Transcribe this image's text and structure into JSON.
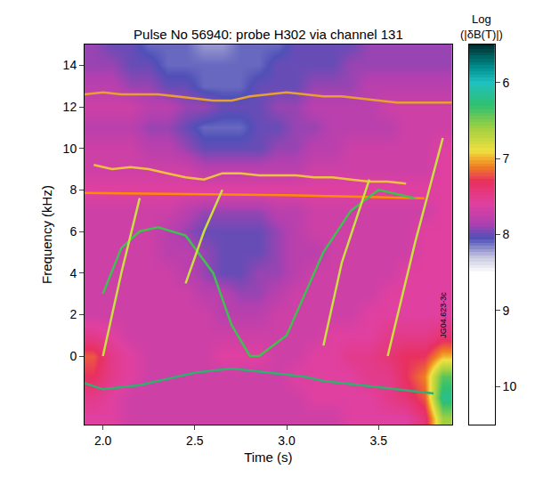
{
  "chart_data": {
    "type": "heatmap",
    "title": "Pulse No 56940: probe H302 via channel 131",
    "x_label": "Time (s)",
    "y_label": "Frequency (kHz)",
    "xlim": [
      1.9,
      3.9
    ],
    "ylim": [
      -3.3,
      15
    ],
    "xticks": [
      {
        "value": 2,
        "label": "2.0"
      },
      {
        "value": 2.5,
        "label": "2.5"
      },
      {
        "value": 3,
        "label": "3.0"
      },
      {
        "value": 3.5,
        "label": "3.5"
      }
    ],
    "yticks": [
      0,
      2,
      4,
      6,
      8,
      10,
      12,
      14
    ],
    "x": [
      1.95,
      2.05,
      2.15,
      2.25,
      2.35,
      2.45,
      2.55,
      2.65,
      2.75,
      2.85,
      2.95,
      3.05,
      3.15,
      3.25,
      3.35,
      3.45,
      3.55,
      3.65,
      3.75,
      3.85
    ],
    "y": [
      -3,
      -2,
      -1,
      0,
      1,
      2,
      3,
      4,
      5,
      6,
      7,
      8,
      9,
      10,
      11,
      12,
      13,
      14,
      15
    ],
    "z": [
      [
        7.6,
        7.6,
        7.7,
        7.7,
        7.7,
        7.7,
        7.7,
        7.7,
        7.7,
        7.7,
        7.7,
        7.7,
        7.7,
        7.7,
        7.6,
        7.6,
        7.6,
        7.6,
        7.4,
        6.6
      ],
      [
        7.5,
        7.6,
        7.7,
        7.7,
        7.7,
        7.7,
        7.7,
        7.7,
        7.7,
        7.7,
        7.7,
        7.7,
        7.6,
        7.6,
        7.6,
        7.6,
        7.5,
        7.4,
        7.2,
        6.2
      ],
      [
        7.3,
        7.5,
        7.6,
        7.7,
        7.7,
        7.7,
        7.7,
        7.7,
        7.7,
        7.7,
        7.7,
        7.6,
        7.6,
        7.6,
        7.6,
        7.5,
        7.5,
        7.3,
        7.1,
        6.4
      ],
      [
        7.2,
        7.5,
        7.6,
        7.7,
        7.7,
        7.7,
        7.7,
        7.6,
        7.6,
        7.6,
        7.7,
        7.7,
        7.6,
        7.6,
        7.5,
        7.5,
        7.4,
        7.3,
        7.3,
        7.0
      ],
      [
        7.5,
        7.6,
        7.7,
        7.7,
        7.7,
        7.7,
        7.7,
        7.7,
        7.7,
        7.7,
        7.7,
        7.7,
        7.7,
        7.6,
        7.6,
        7.6,
        7.5,
        7.5,
        7.5,
        7.4
      ],
      [
        7.7,
        7.7,
        7.7,
        7.7,
        7.7,
        7.7,
        7.7,
        7.8,
        7.8,
        7.8,
        7.7,
        7.7,
        7.7,
        7.7,
        7.7,
        7.6,
        7.6,
        7.6,
        7.6,
        7.6
      ],
      [
        7.7,
        7.7,
        7.7,
        7.7,
        7.7,
        7.7,
        7.8,
        7.8,
        7.9,
        7.9,
        7.8,
        7.7,
        7.7,
        7.7,
        7.7,
        7.7,
        7.6,
        7.6,
        7.6,
        7.6
      ],
      [
        7.7,
        7.7,
        7.7,
        7.7,
        7.7,
        7.8,
        7.9,
        8.0,
        8.0,
        7.9,
        7.9,
        7.8,
        7.7,
        7.7,
        7.7,
        7.7,
        7.7,
        7.6,
        7.6,
        7.6
      ],
      [
        7.7,
        7.7,
        7.7,
        7.7,
        7.8,
        7.8,
        7.9,
        8.0,
        8.0,
        8.0,
        7.9,
        7.8,
        7.8,
        7.7,
        7.7,
        7.7,
        7.7,
        7.7,
        7.6,
        7.6
      ],
      [
        7.7,
        7.7,
        7.7,
        7.7,
        7.8,
        7.9,
        8.0,
        8.0,
        8.0,
        8.0,
        7.9,
        7.8,
        7.7,
        7.7,
        7.7,
        7.7,
        7.7,
        7.7,
        7.6,
        7.6
      ],
      [
        7.7,
        7.7,
        7.7,
        7.7,
        7.7,
        7.8,
        7.9,
        7.9,
        7.9,
        7.9,
        7.8,
        7.8,
        7.7,
        7.7,
        7.7,
        7.7,
        7.7,
        7.7,
        7.7,
        7.6
      ],
      [
        7.6,
        7.6,
        7.6,
        7.6,
        7.6,
        7.6,
        7.6,
        7.6,
        7.6,
        7.6,
        7.6,
        7.6,
        7.6,
        7.6,
        7.6,
        7.6,
        7.6,
        7.6,
        7.6,
        7.6
      ],
      [
        7.7,
        7.7,
        7.7,
        7.7,
        7.7,
        7.7,
        7.8,
        7.8,
        7.8,
        7.8,
        7.8,
        7.8,
        7.7,
        7.7,
        7.7,
        7.7,
        7.7,
        7.7,
        7.7,
        7.6
      ],
      [
        7.7,
        7.7,
        7.7,
        7.8,
        7.8,
        7.9,
        8.0,
        8.0,
        8.0,
        8.0,
        7.9,
        7.9,
        7.8,
        7.8,
        7.7,
        7.7,
        7.7,
        7.7,
        7.7,
        7.6
      ],
      [
        7.8,
        7.8,
        7.8,
        7.9,
        7.9,
        8.0,
        8.1,
        8.1,
        8.1,
        8.0,
        8.0,
        7.9,
        7.9,
        7.8,
        7.8,
        7.8,
        7.8,
        7.7,
        7.7,
        7.7
      ],
      [
        7.7,
        7.7,
        7.7,
        7.8,
        7.8,
        7.9,
        7.9,
        8.0,
        8.0,
        8.0,
        7.9,
        7.9,
        7.8,
        7.8,
        7.8,
        7.8,
        7.7,
        7.7,
        7.7,
        7.7
      ],
      [
        7.8,
        7.8,
        7.9,
        7.9,
        8.0,
        8.0,
        8.1,
        8.1,
        8.1,
        8.0,
        8.0,
        8.0,
        7.9,
        7.9,
        7.9,
        7.8,
        7.8,
        7.8,
        7.8,
        7.8
      ],
      [
        7.9,
        7.9,
        8.0,
        8.0,
        8.1,
        8.1,
        8.1,
        8.1,
        8.1,
        8.1,
        8.0,
        8.0,
        8.0,
        8.0,
        7.9,
        7.9,
        7.9,
        7.9,
        7.9,
        7.9
      ],
      [
        7.9,
        8.0,
        8.0,
        8.1,
        8.1,
        8.1,
        8.2,
        8.2,
        8.1,
        8.1,
        8.1,
        8.0,
        8.0,
        8.0,
        8.0,
        7.9,
        7.9,
        7.9,
        7.9,
        7.9
      ]
    ],
    "colorbar": {
      "title": [
        "Log",
        "(|δB(T)|)"
      ],
      "range": [
        5.5,
        10.5
      ],
      "ticks": [
        6,
        7,
        8,
        9,
        10
      ]
    },
    "annotations": [
      "JG04.623-3c"
    ],
    "series": [
      {
        "type": "line",
        "color": "#e8a030",
        "x": [
          1.9,
          2.0,
          2.1,
          2.2,
          2.3,
          2.4,
          2.5,
          2.6,
          2.7,
          2.8,
          2.9,
          3.0,
          3.1,
          3.2,
          3.3,
          3.4,
          3.5,
          3.6,
          3.7,
          3.8,
          3.9
        ],
        "values": [
          12.6,
          12.7,
          12.6,
          12.6,
          12.6,
          12.5,
          12.4,
          12.3,
          12.3,
          12.5,
          12.6,
          12.7,
          12.6,
          12.5,
          12.5,
          12.4,
          12.3,
          12.2,
          12.2,
          12.2,
          12.2
        ]
      },
      {
        "type": "line",
        "color": "#f0c040",
        "x": [
          1.95,
          2.05,
          2.15,
          2.25,
          2.35,
          2.45,
          2.55,
          2.65,
          2.75,
          2.85,
          2.95,
          3.05,
          3.15,
          3.25,
          3.35,
          3.45,
          3.55,
          3.65
        ],
        "values": [
          9.2,
          9.0,
          9.1,
          9.0,
          8.8,
          8.6,
          8.5,
          8.8,
          8.8,
          8.7,
          8.7,
          8.7,
          8.6,
          8.6,
          8.5,
          8.4,
          8.4,
          8.3
        ]
      },
      {
        "type": "line",
        "color": "#ff8c00",
        "x": [
          1.9,
          2.5,
          3.0,
          3.5,
          3.75
        ],
        "values": [
          7.85,
          7.8,
          7.75,
          7.65,
          7.6
        ]
      },
      {
        "type": "line",
        "color": "#30b070",
        "x": [
          1.9,
          2.0,
          2.1,
          2.2,
          2.3,
          2.4,
          2.5,
          2.6,
          2.7,
          2.8,
          2.9,
          3.0,
          3.1,
          3.2,
          3.3,
          3.4,
          3.5,
          3.6,
          3.7,
          3.8
        ],
        "values": [
          -1.3,
          -1.6,
          -1.5,
          -1.4,
          -1.2,
          -1.0,
          -0.8,
          -0.7,
          -0.6,
          -0.7,
          -0.8,
          -0.9,
          -1.0,
          -1.2,
          -1.3,
          -1.4,
          -1.5,
          -1.6,
          -1.7,
          -1.8
        ]
      },
      {
        "type": "line",
        "color": "#40c050",
        "x": [
          2.0,
          2.1,
          2.2,
          2.3,
          2.45,
          2.6,
          2.7,
          2.8,
          2.85,
          3.0,
          3.1,
          3.2,
          3.35,
          3.5,
          3.7
        ],
        "values": [
          3.0,
          5.2,
          6.0,
          6.2,
          5.8,
          4.0,
          1.5,
          0.0,
          0.0,
          1.0,
          3.0,
          5.0,
          7.0,
          8.0,
          7.6
        ]
      },
      {
        "type": "line",
        "color": "#c8e040",
        "x": [
          2.0,
          2.1,
          2.2
        ],
        "values": [
          0,
          4,
          7.6
        ]
      },
      {
        "type": "line",
        "color": "#c8e040",
        "x": [
          2.45,
          2.55,
          2.65
        ],
        "values": [
          3.5,
          6,
          8.0
        ]
      },
      {
        "type": "line",
        "color": "#c8e040",
        "x": [
          3.2,
          3.3,
          3.45
        ],
        "values": [
          0.5,
          4.5,
          8.5
        ]
      },
      {
        "type": "line",
        "color": "#c8e040",
        "x": [
          3.55,
          3.7,
          3.85
        ],
        "values": [
          0,
          5.5,
          10.5
        ]
      }
    ]
  }
}
